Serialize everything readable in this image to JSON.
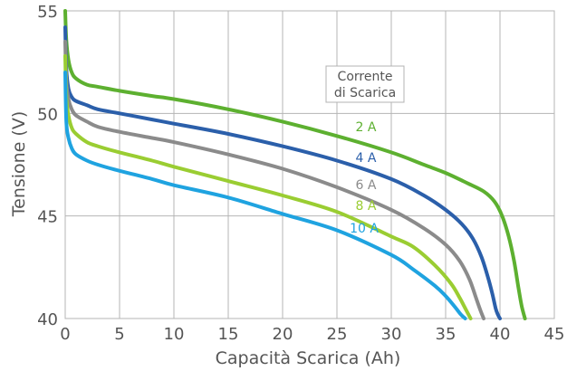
{
  "chart_data": {
    "type": "line",
    "xlabel": "Capacità Scarica (Ah)",
    "ylabel": "Tensione (V)",
    "xlim": [
      0,
      45
    ],
    "ylim": [
      40,
      55
    ],
    "xticks": [
      0,
      5,
      10,
      15,
      20,
      25,
      30,
      35,
      40,
      45
    ],
    "yticks": [
      40,
      45,
      50,
      55
    ],
    "grid": true,
    "legend_title": [
      "Corrente",
      "di Scarica"
    ],
    "series": [
      {
        "name": "2 A",
        "color": "#5db030",
        "x": [
          0,
          0.1,
          0.3,
          0.6,
          1,
          2,
          3,
          5,
          8,
          10,
          15,
          20,
          25,
          30,
          33,
          35,
          37,
          38.5,
          39.5,
          40.2,
          40.8,
          41.3,
          41.7,
          42,
          42.3
        ],
        "y": [
          55,
          53.6,
          52.6,
          52.0,
          51.7,
          51.4,
          51.3,
          51.1,
          50.85,
          50.7,
          50.2,
          49.6,
          48.9,
          48.1,
          47.5,
          47.1,
          46.6,
          46.2,
          45.7,
          45.0,
          44.0,
          42.8,
          41.5,
          40.6,
          40
        ]
      },
      {
        "name": "4 A",
        "color": "#2b5faa",
        "x": [
          0,
          0.1,
          0.3,
          0.6,
          1,
          2,
          3,
          5,
          8,
          10,
          15,
          20,
          25,
          30,
          33,
          35,
          36.5,
          37.5,
          38.3,
          38.9,
          39.3,
          39.6,
          39.8,
          40
        ],
        "y": [
          54.2,
          52.2,
          51.2,
          50.8,
          50.6,
          50.4,
          50.2,
          50.0,
          49.7,
          49.5,
          49.0,
          48.4,
          47.7,
          46.8,
          46.0,
          45.3,
          44.6,
          43.9,
          43.0,
          42.0,
          41.2,
          40.5,
          40.2,
          40
        ]
      },
      {
        "name": "6 A",
        "color": "#8b8b8b",
        "x": [
          0,
          0.1,
          0.3,
          0.6,
          1,
          2,
          3,
          5,
          8,
          10,
          15,
          20,
          25,
          30,
          33,
          35,
          36.3,
          37.2,
          37.8,
          38.2,
          38.5
        ],
        "y": [
          53.5,
          51.6,
          50.7,
          50.2,
          49.9,
          49.6,
          49.35,
          49.1,
          48.8,
          48.6,
          48.0,
          47.3,
          46.4,
          45.3,
          44.4,
          43.6,
          42.8,
          41.9,
          41.0,
          40.4,
          40
        ]
      },
      {
        "name": "8 A",
        "color": "#9acd32",
        "x": [
          0,
          0.1,
          0.3,
          0.6,
          1,
          2,
          3,
          5,
          8,
          10,
          15,
          20,
          25,
          30,
          32,
          34,
          35.5,
          36.3,
          36.9,
          37.3
        ],
        "y": [
          52.8,
          50.8,
          49.9,
          49.3,
          49.0,
          48.6,
          48.4,
          48.1,
          47.7,
          47.4,
          46.7,
          46.0,
          45.2,
          44.0,
          43.5,
          42.6,
          41.7,
          41.0,
          40.4,
          40
        ]
      },
      {
        "name": "10 A",
        "color": "#1fa3e0",
        "x": [
          0,
          0.1,
          0.3,
          0.6,
          1,
          2,
          3,
          5,
          8,
          10,
          15,
          20,
          25,
          30,
          32,
          34,
          35,
          35.8,
          36.4,
          36.8
        ],
        "y": [
          52.0,
          49.6,
          48.8,
          48.3,
          48.0,
          47.7,
          47.5,
          47.2,
          46.8,
          46.5,
          45.9,
          45.1,
          44.3,
          43.1,
          42.4,
          41.6,
          41.1,
          40.6,
          40.2,
          40
        ]
      }
    ]
  }
}
